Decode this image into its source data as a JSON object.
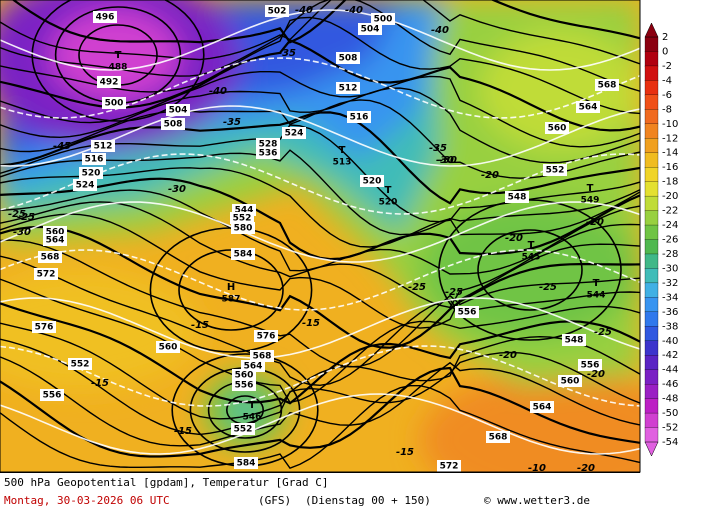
{
  "colorbar": {
    "labels": [
      2,
      0,
      -2,
      -4,
      -6,
      -8,
      -10,
      -12,
      -14,
      -16,
      -18,
      -20,
      -22,
      -24,
      -26,
      -28,
      -30,
      -32,
      -34,
      -36,
      -38,
      -40,
      -42,
      -44,
      -46,
      -48,
      -50,
      -52,
      -54
    ],
    "colors": [
      "#8b0010",
      "#b00010",
      "#d01010",
      "#e83010",
      "#f05018",
      "#f06a20",
      "#f08420",
      "#f0a020",
      "#f0bc20",
      "#f0d428",
      "#e4e030",
      "#c0dc38",
      "#98d040",
      "#70c444",
      "#50b850",
      "#40b888",
      "#40bcb8",
      "#40b0e4",
      "#3894f0",
      "#3078ec",
      "#3058e0",
      "#3c34cc",
      "#5a24c4",
      "#7a20c4",
      "#9a20c4",
      "#bc20c4",
      "#d040d0",
      "#e060e0"
    ]
  },
  "centers": [
    {
      "symbol": "T",
      "value": "488"
    },
    {
      "symbol": "H",
      "value": "587"
    },
    {
      "symbol": "T",
      "value": "546"
    },
    {
      "symbol": "T",
      "value": "513"
    },
    {
      "symbol": "T",
      "value": "520"
    },
    {
      "symbol": "T",
      "value": "545"
    },
    {
      "symbol": "T",
      "value": "544"
    },
    {
      "symbol": "T",
      "value": "549"
    }
  ],
  "contour_labels": [
    "496",
    "492",
    "500",
    "504",
    "508",
    "512",
    "516",
    "520",
    "524",
    "528",
    "536",
    "544",
    "552",
    "560",
    "564",
    "568",
    "572",
    "576",
    "580",
    "584",
    "502",
    "500",
    "504",
    "508",
    "512",
    "516",
    "520",
    "524",
    "548",
    "556",
    "552",
    "560",
    "564",
    "568",
    "572",
    "584",
    "576",
    "568",
    "564",
    "560",
    "556",
    "552",
    "548",
    "556",
    "560",
    "568",
    "564",
    "560",
    "556",
    "552"
  ],
  "isotherm_labels": [
    "-40",
    "-45",
    "-40",
    "-35",
    "-30",
    "-25",
    "-30",
    "-20",
    "-15",
    "-15",
    "-15",
    "-35",
    "-40",
    "-40",
    "-35",
    "-30",
    "-25",
    "-20",
    "-20",
    "-25",
    "-20",
    "-15",
    "-15",
    "-10",
    "-25",
    "-20",
    "-20",
    "-25",
    "-30",
    "-25"
  ],
  "footer": {
    "line1": "500 hPa Geopotential [gpdam], Temperatur [Grad C]",
    "date": "Montag, 30-03-2026  06 UTC",
    "model": "(GFS)",
    "run": "(Dienstag 00 + 150)",
    "site": "© www.wetter3.de"
  }
}
